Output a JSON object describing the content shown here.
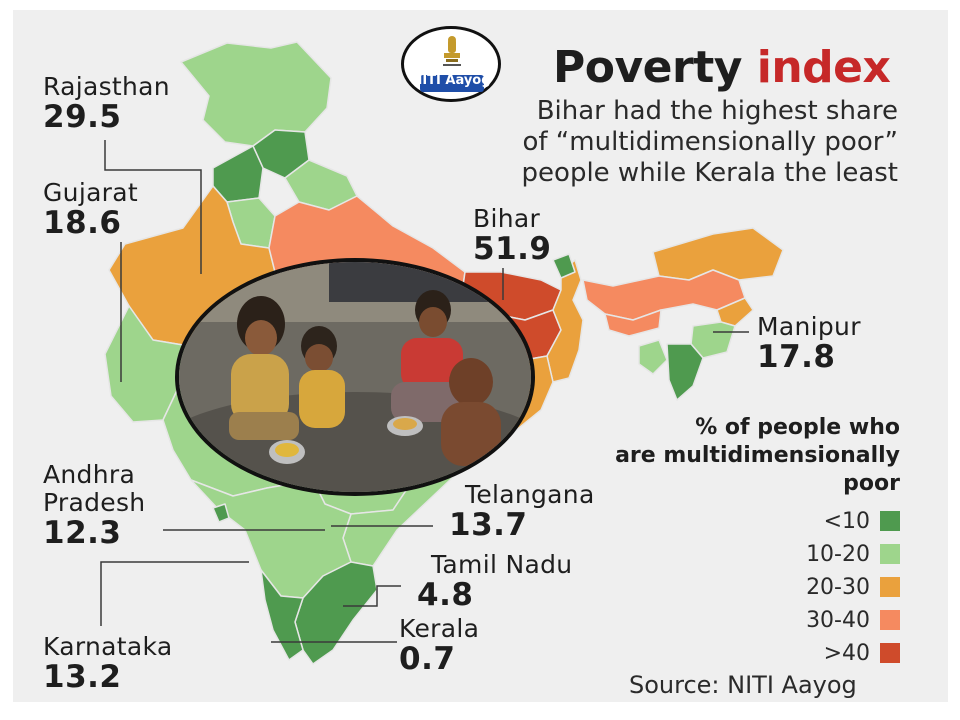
{
  "title": {
    "prefix": "Poverty",
    "highlight": "index"
  },
  "subtitle": [
    "Bihar had the highest share",
    "of “multidimensionally poor”",
    "people while Kerala the least"
  ],
  "logo": {
    "text": "NITI Aayog"
  },
  "photo": {
    "description_icon": "children-eating-photo"
  },
  "states": [
    {
      "id": "rajasthan",
      "name": [
        "Rajasthan"
      ],
      "value": "29.5"
    },
    {
      "id": "gujarat",
      "name": [
        "Gujarat"
      ],
      "value": "18.6"
    },
    {
      "id": "bihar",
      "name": [
        "Bihar"
      ],
      "value": "51.9"
    },
    {
      "id": "manipur",
      "name": [
        "Manipur"
      ],
      "value": "17.8"
    },
    {
      "id": "andhra",
      "name": [
        "Andhra",
        "Pradesh"
      ],
      "value": "12.3"
    },
    {
      "id": "telangana",
      "name": [
        "Telangana"
      ],
      "value": "13.7"
    },
    {
      "id": "tamilnadu",
      "name": [
        "Tamil Nadu"
      ],
      "value": "4.8"
    },
    {
      "id": "karnataka",
      "name": [
        "Karnataka"
      ],
      "value": "13.2"
    },
    {
      "id": "kerala",
      "name": [
        "Kerala"
      ],
      "value": "0.7"
    }
  ],
  "legend": {
    "title": [
      "% of people who",
      "are multidimensionally",
      "poor"
    ],
    "items": [
      {
        "label": "<10",
        "color": "#4f9a4f"
      },
      {
        "label": "10-20",
        "color": "#9ed58c"
      },
      {
        "label": "20-30",
        "color": "#eaa13d"
      },
      {
        "label": "30-40",
        "color": "#f58a60"
      },
      {
        "label": ">40",
        "color": "#cf4b2b"
      }
    ]
  },
  "source": "Source: NITI Aayog"
}
